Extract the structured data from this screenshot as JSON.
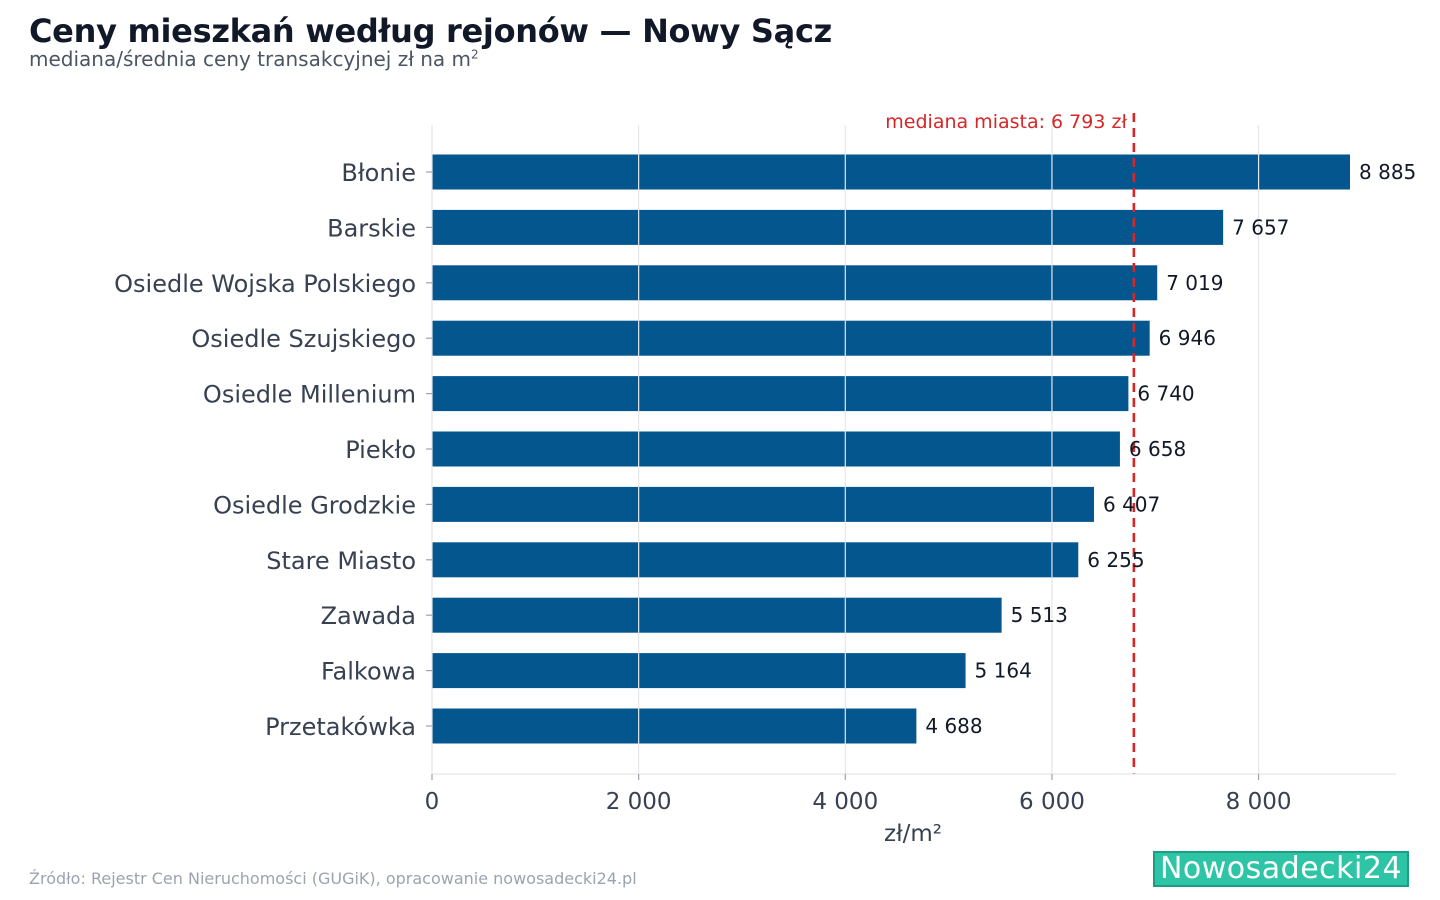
{
  "header": {
    "title": "Ceny mieszkań według rejonów — Nowy Sącz",
    "subtitle": "mediana/średnia ceny transakcyjnej zł na m",
    "subtitle_sup": "2"
  },
  "chart_data": {
    "type": "bar",
    "orientation": "horizontal",
    "categories": [
      "Błonie",
      "Barskie",
      "Osiedle Wojska Polskiego",
      "Osiedle Szujskiego",
      "Osiedle Millenium",
      "Piekło",
      "Osiedle Grodzkie",
      "Stare Miasto",
      "Zawada",
      "Falkowa",
      "Przetakówka"
    ],
    "values": [
      8885,
      7657,
      7019,
      6946,
      6740,
      6658,
      6407,
      6255,
      5513,
      5164,
      4688
    ],
    "value_labels": [
      "8 885",
      "7 657",
      "7 019",
      "6 946",
      "6 740",
      "6 658",
      "6 407",
      "6 255",
      "5 513",
      "5 164",
      "4 688"
    ],
    "xlabel": "zł/m²",
    "xlim": [
      0,
      9330
    ],
    "xticks": [
      0,
      2000,
      4000,
      6000,
      8000
    ],
    "xtick_labels": [
      "0",
      "2 000",
      "4 000",
      "6 000",
      "8 000"
    ],
    "grid": "vertical",
    "reference_line": {
      "value": 6793,
      "label": "mediana miasta: 6 793 zł",
      "color": "#d62728",
      "style": "dashed"
    },
    "bar_color": "#03568e"
  },
  "footer": {
    "source": "Źródło: Rejestr Cen Nieruchomości (GUGiK), opracowanie nowosadecki24.pl",
    "logo_text": "Nowosadecki24"
  }
}
